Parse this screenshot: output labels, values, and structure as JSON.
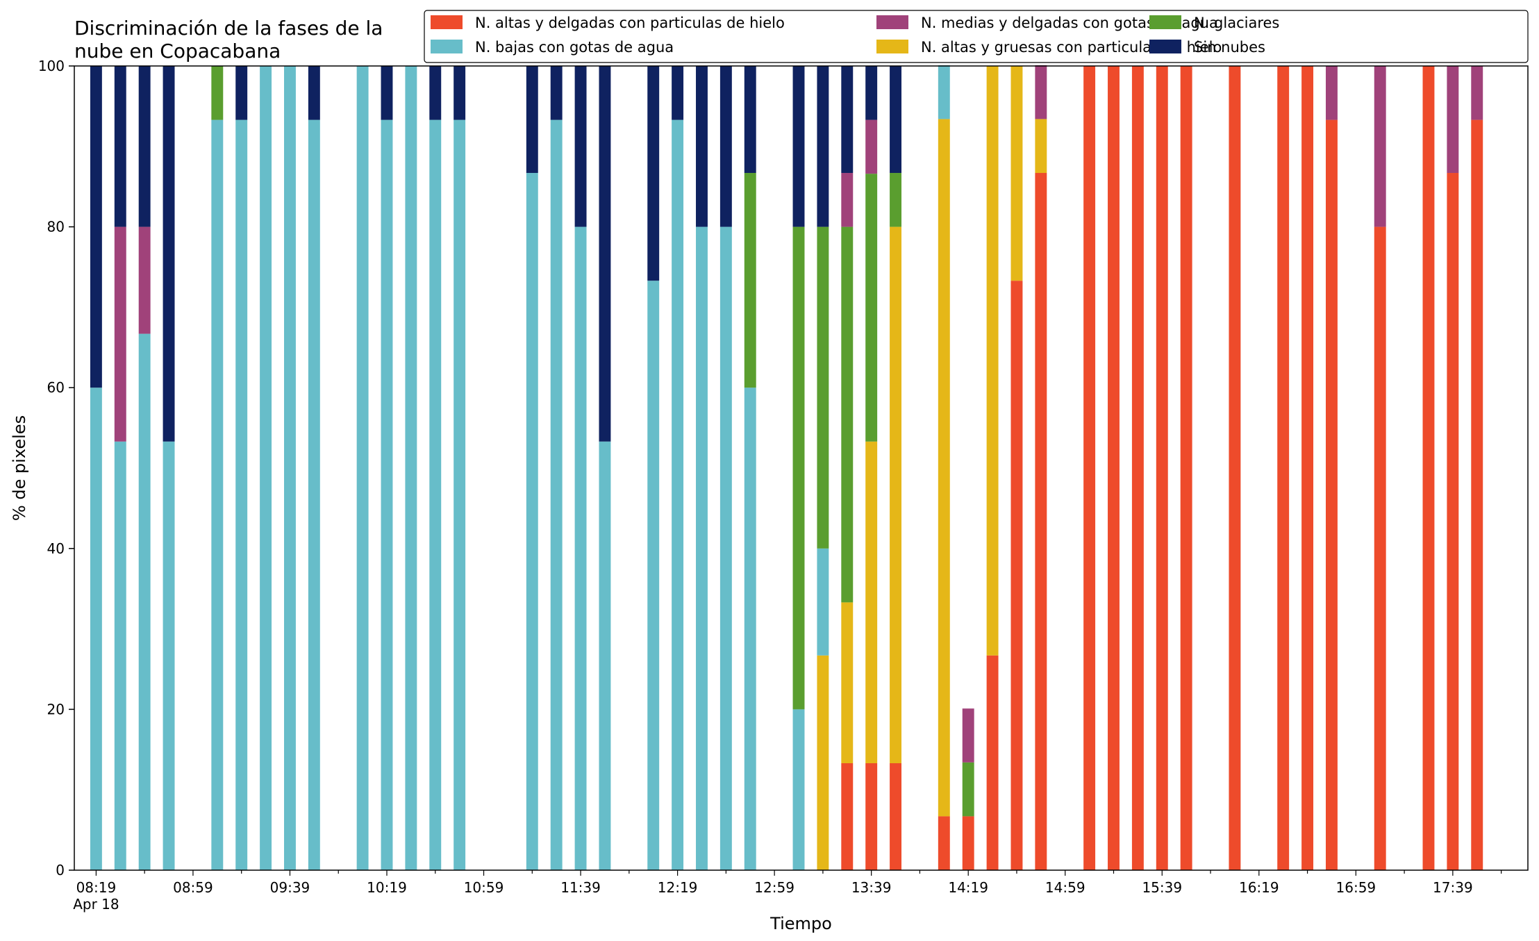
{
  "chart_data": {
    "type": "bar",
    "stacked": true,
    "title_lines": [
      "Discriminación de la fases de la",
      "nube en Copacabana"
    ],
    "xlabel": "Tiempo",
    "ylabel": "% de pixeles",
    "ylim": [
      0,
      100
    ],
    "y_ticks": [
      "0",
      "20",
      "40",
      "60",
      "80",
      "100"
    ],
    "x_tick_labels": [
      "08:19",
      "08:59",
      "09:39",
      "10:19",
      "10:59",
      "11:39",
      "12:19",
      "12:59",
      "13:39",
      "14:19",
      "14:59",
      "15:39",
      "16:19",
      "16:59",
      "17:39"
    ],
    "x_date_label": "Apr 18",
    "legend_position": "top-right",
    "grid": false,
    "times": [
      "08:19",
      "08:29",
      "08:39",
      "08:49",
      "09:09",
      "09:19",
      "09:29",
      "09:39",
      "09:49",
      "10:09",
      "10:19",
      "10:29",
      "10:39",
      "10:49",
      "11:19",
      "11:29",
      "11:39",
      "11:49",
      "12:09",
      "12:19",
      "12:29",
      "12:39",
      "12:49",
      "13:09",
      "13:19",
      "13:29",
      "13:39",
      "13:49",
      "14:09",
      "14:19",
      "14:29",
      "14:39",
      "14:49",
      "15:09",
      "15:19",
      "15:29",
      "15:39",
      "15:49",
      "16:09",
      "16:29",
      "16:39",
      "16:49",
      "17:09",
      "17:29",
      "17:39",
      "17:49"
    ],
    "series": [
      {
        "name": "N. altas y delgadas con particulas de hielo",
        "color": "#EE4B2B",
        "values": [
          0,
          0,
          0,
          0,
          0,
          0,
          0,
          0,
          0,
          0,
          0,
          0,
          0,
          0,
          0,
          0,
          0,
          0,
          0,
          0,
          0,
          0,
          0,
          0,
          0,
          13.3,
          13.3,
          13.3,
          6.7,
          6.7,
          26.7,
          73.3,
          86.7,
          100,
          100,
          100,
          100,
          100,
          100,
          100,
          100,
          93.3,
          80,
          100,
          86.7,
          93.3
        ]
      },
      {
        "name": "N. altas y gruesas con particulas de hielo",
        "color": "#E5B718",
        "values": [
          0,
          0,
          0,
          0,
          0,
          0,
          0,
          0,
          0,
          0,
          0,
          0,
          0,
          0,
          0,
          0,
          0,
          0,
          0,
          0,
          0,
          0,
          0,
          0,
          26.7,
          20,
          40,
          66.7,
          86.7,
          0,
          73.3,
          26.7,
          6.7,
          0,
          0,
          0,
          0,
          0,
          0,
          0,
          0,
          0,
          0,
          0,
          0,
          0
        ]
      },
      {
        "name": "N. bajas con gotas de agua",
        "color": "#67BDC9",
        "values": [
          60,
          53.3,
          66.7,
          53.3,
          93.3,
          93.3,
          100,
          100,
          93.3,
          100,
          93.3,
          100,
          93.3,
          93.3,
          86.7,
          93.3,
          80,
          53.3,
          73.3,
          93.3,
          80,
          80,
          60,
          20,
          13.3,
          0,
          0,
          0,
          6.7,
          0,
          0,
          0,
          0,
          0,
          0,
          0,
          0,
          0,
          0,
          0,
          0,
          0,
          0,
          0,
          0,
          0
        ]
      },
      {
        "name": "N. glaciares",
        "color": "#5A9E2F",
        "values": [
          0,
          0,
          0,
          0,
          6.7,
          0,
          0,
          0,
          0,
          0,
          0,
          0,
          0,
          0,
          0,
          0,
          0,
          0,
          0,
          0,
          0,
          0,
          26.7,
          60,
          40,
          46.7,
          33.3,
          6.7,
          0,
          6.7,
          0,
          0,
          0,
          0,
          0,
          0,
          0,
          0,
          0,
          0,
          0,
          0,
          0,
          0,
          0,
          0
        ]
      },
      {
        "name": "N. medias y delgadas con gotas de agua",
        "color": "#A0427A",
        "values": [
          0,
          26.7,
          13.3,
          0,
          0,
          0,
          0,
          0,
          0,
          0,
          0,
          0,
          0,
          0,
          0,
          0,
          0,
          0,
          0,
          0,
          0,
          0,
          0,
          0,
          0,
          6.7,
          6.7,
          0,
          0,
          6.7,
          0,
          0,
          6.7,
          0,
          0,
          0,
          0,
          0,
          0,
          0,
          0,
          6.7,
          20,
          0,
          13.3,
          6.7
        ]
      },
      {
        "name": "Sin nubes",
        "color": "#0F2260",
        "values": [
          40,
          20,
          20,
          46.7,
          0,
          6.7,
          0,
          0,
          6.7,
          0,
          6.7,
          0,
          6.7,
          6.7,
          13.3,
          6.7,
          20,
          46.7,
          26.7,
          6.7,
          20,
          20,
          13.3,
          20,
          20,
          13.3,
          6.7,
          13.3,
          0,
          0,
          0,
          0,
          0,
          0,
          0,
          0,
          0,
          0,
          0,
          0,
          0,
          0,
          0,
          0,
          0,
          0
        ]
      }
    ],
    "legend_order": [
      0,
      2,
      4,
      1,
      3,
      5
    ]
  }
}
